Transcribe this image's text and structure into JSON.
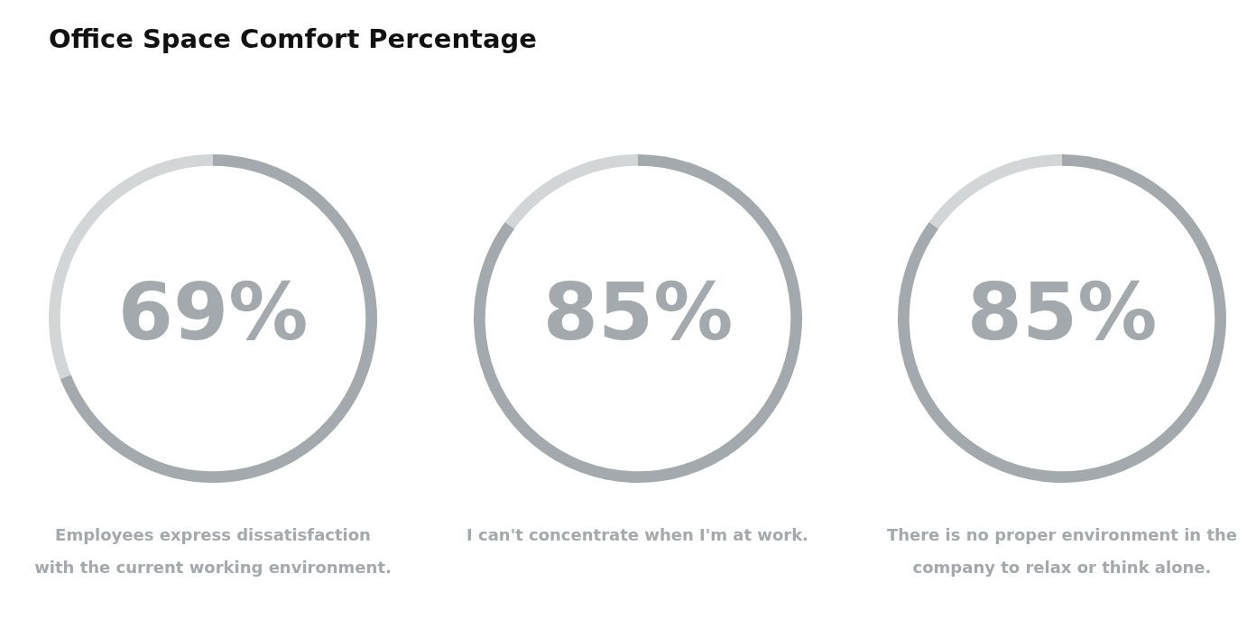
{
  "chart_data": [
    {
      "type": "donut",
      "title": "Office Space Comfort Percentage",
      "categories": [
        null,
        null
      ],
      "values": [
        69,
        31
      ],
      "colors": [
        "#a3a9ac",
        "#d3d6d7"
      ],
      "value_labels": [
        "69%",
        null
      ],
      "annotations": [
        "Employees express dissatisfaction with the current working environment."
      ],
      "legend": false
    },
    {
      "type": "donut",
      "categories": [
        null,
        null
      ],
      "values": [
        85,
        15
      ],
      "colors": [
        "#a3a9ac",
        "#d3d6d7"
      ],
      "value_labels": [
        "85%",
        null
      ],
      "annotations": [
        "I can't concentrate when I'm at work."
      ],
      "legend": false
    },
    {
      "type": "donut",
      "categories": [
        null,
        null
      ],
      "values": [
        85,
        15
      ],
      "colors": [
        "#a3a9ac",
        "#d3d6d7"
      ],
      "value_labels": [
        "85%",
        null
      ],
      "annotations": [
        "There is no proper environment in the company to relax or think alone."
      ],
      "legend": false
    }
  ]
}
